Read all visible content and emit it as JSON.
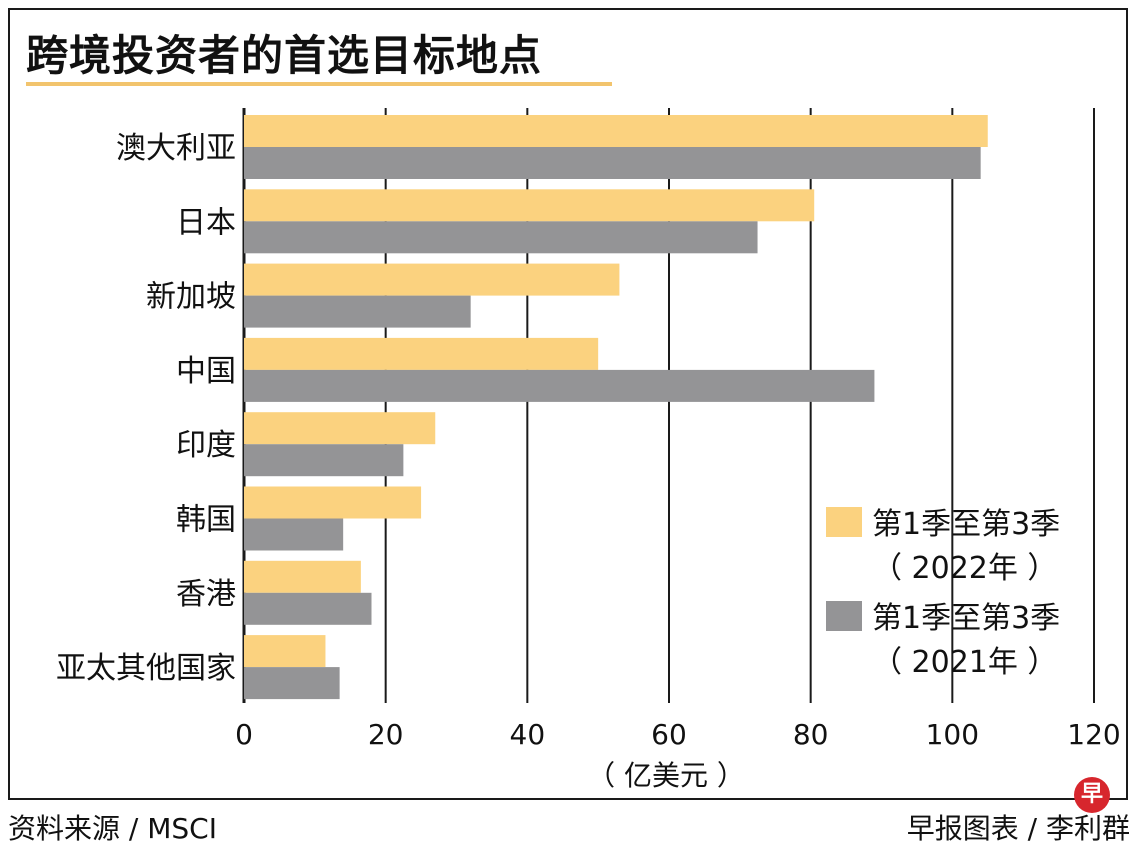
{
  "title": "跨境投资者的首选目标地点",
  "footer": {
    "source": "资料来源 / MSCI",
    "credit": "早报图表 / 李利群"
  },
  "logo": {
    "text": "早"
  },
  "colors": {
    "series_2022": "#fbd27f",
    "series_2021": "#949496",
    "title_underline": "#f2c46d",
    "logo": "#d7262d"
  },
  "chart_data": {
    "type": "bar",
    "orientation": "horizontal",
    "title": "跨境投资者的首选目标地点",
    "xlabel": "（ 亿美元 ）",
    "ylabel": "",
    "xlim": [
      0,
      120
    ],
    "xticks": [
      0,
      20,
      40,
      60,
      80,
      100,
      120
    ],
    "grid": true,
    "legend_position": "right",
    "categories": [
      "澳大利亚",
      "日本",
      "新加坡",
      "中国",
      "印度",
      "韩国",
      "香港",
      "亚太其他国家"
    ],
    "series": [
      {
        "name": "第1季至第3季（ 2022年 ）",
        "legend_lines": [
          "第1季至第3季",
          "（ 2022年 ）"
        ],
        "color": "#fbd27f",
        "values": [
          105,
          80.5,
          53,
          50,
          27,
          25,
          16.5,
          11.5
        ]
      },
      {
        "name": "第1季至第3季（ 2021年 ）",
        "legend_lines": [
          "第1季至第3季",
          "（ 2021年 ）"
        ],
        "color": "#949496",
        "values": [
          104,
          72.5,
          32,
          89,
          22.5,
          14,
          18,
          13.5
        ]
      }
    ]
  }
}
